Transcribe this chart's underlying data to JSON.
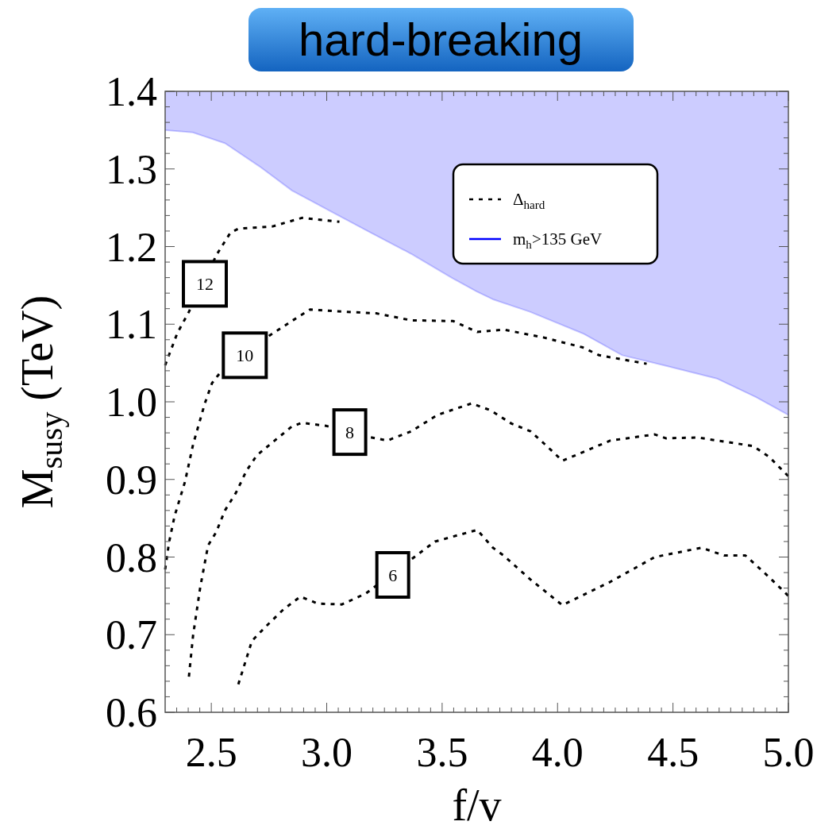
{
  "chart_data": {
    "type": "line",
    "title": "hard-breaking",
    "xlabel": "f/v",
    "ylabel": "M$_{susy}$ (TeV)",
    "xlim": [
      2.3,
      5.0
    ],
    "ylim": [
      0.6,
      1.4
    ],
    "xticks": [
      {
        "value": 2.35,
        "label": null
      },
      {
        "value": 2.4,
        "label": null
      },
      {
        "value": 2.45,
        "label": null
      },
      2.5,
      {
        "value": 2.55,
        "label": null
      },
      {
        "value": 2.6,
        "label": null
      },
      {
        "value": 2.65,
        "label": null
      },
      {
        "value": 2.7,
        "label": null
      },
      {
        "value": 2.75,
        "label": null
      },
      {
        "value": 2.8,
        "label": null
      },
      {
        "value": 2.85,
        "label": null
      },
      {
        "value": 2.9,
        "label": null
      },
      {
        "value": 2.95,
        "label": null
      },
      {
        "value": 3,
        "label": "3.0"
      },
      {
        "value": 3.05,
        "label": null
      },
      {
        "value": 3.1,
        "label": null
      },
      {
        "value": 3.15,
        "label": null
      },
      {
        "value": 3.2,
        "label": null
      },
      {
        "value": 3.25,
        "label": null
      },
      {
        "value": 3.3,
        "label": null
      },
      {
        "value": 3.35,
        "label": null
      },
      {
        "value": 3.4,
        "label": null
      },
      {
        "value": 3.45,
        "label": null
      },
      3.5,
      {
        "value": 3.55,
        "label": null
      },
      {
        "value": 3.6,
        "label": null
      },
      {
        "value": 3.65,
        "label": null
      },
      {
        "value": 3.7,
        "label": null
      },
      {
        "value": 3.75,
        "label": null
      },
      {
        "value": 3.8,
        "label": null
      },
      {
        "value": 3.85,
        "label": null
      },
      {
        "value": 3.9,
        "label": null
      },
      {
        "value": 3.95,
        "label": null
      },
      {
        "value": 4,
        "label": "4.0"
      },
      {
        "value": 4.05,
        "label": null
      },
      {
        "value": 4.1,
        "label": null
      },
      {
        "value": 4.15,
        "label": null
      },
      {
        "value": 4.2,
        "label": null
      },
      {
        "value": 4.25,
        "label": null
      },
      {
        "value": 4.3,
        "label": null
      },
      {
        "value": 4.35,
        "label": null
      },
      {
        "value": 4.4,
        "label": null
      },
      {
        "value": 4.45,
        "label": null
      },
      4.5,
      {
        "value": 4.55,
        "label": null
      },
      {
        "value": 4.6,
        "label": null
      },
      {
        "value": 4.65,
        "label": null
      },
      {
        "value": 4.7,
        "label": null
      },
      {
        "value": 4.75,
        "label": null
      },
      {
        "value": 4.8,
        "label": null
      },
      {
        "value": 4.85,
        "label": null
      },
      {
        "value": 4.9,
        "label": null
      },
      {
        "value": 4.95,
        "label": null
      },
      {
        "value": 5,
        "label": "5.0"
      }
    ],
    "yticks": [
      0.6,
      {
        "value": 0.62,
        "label": null
      },
      {
        "value": 0.64,
        "label": null
      },
      {
        "value": 0.66,
        "label": null
      },
      {
        "value": 0.68,
        "label": null
      },
      0.7,
      {
        "value": 0.72,
        "label": null
      },
      {
        "value": 0.74,
        "label": null
      },
      {
        "value": 0.76,
        "label": null
      },
      {
        "value": 0.78,
        "label": null
      },
      0.8,
      {
        "value": 0.82,
        "label": null
      },
      {
        "value": 0.84,
        "label": null
      },
      {
        "value": 0.86,
        "label": null
      },
      {
        "value": 0.88,
        "label": null
      },
      0.9,
      {
        "value": 0.92,
        "label": null
      },
      {
        "value": 0.94,
        "label": null
      },
      {
        "value": 0.96,
        "label": null
      },
      {
        "value": 0.98,
        "label": null
      },
      {
        "value": 1,
        "label": "1.0"
      },
      {
        "value": 1.02,
        "label": null
      },
      {
        "value": 1.04,
        "label": null
      },
      {
        "value": 1.06,
        "label": null
      },
      {
        "value": 1.08,
        "label": null
      },
      1.1,
      {
        "value": 1.12,
        "label": null
      },
      {
        "value": 1.14,
        "label": null
      },
      {
        "value": 1.16,
        "label": null
      },
      {
        "value": 1.18,
        "label": null
      },
      1.2,
      {
        "value": 1.22,
        "label": null
      },
      {
        "value": 1.24,
        "label": null
      },
      {
        "value": 1.26,
        "label": null
      },
      {
        "value": 1.28,
        "label": null
      },
      1.3,
      {
        "value": 1.32,
        "label": null
      },
      {
        "value": 1.34,
        "label": null
      },
      {
        "value": 1.36,
        "label": null
      },
      {
        "value": 1.38,
        "label": null
      },
      1.4
    ],
    "legend": "top right",
    "line_style": "dashed",
    "series": [
      {
        "name": "Δ$_{hard}$",
        "color": "#000000",
        "x": [
          2.3,
          2.352,
          2.403,
          2.524,
          2.583,
          2.617,
          2.766,
          2.893,
          3.055
        ],
        "values": [
          1.047,
          1.088,
          1.116,
          1.19,
          1.218,
          1.223,
          1.226,
          1.237,
          1.232
        ]
      },
      {
        "color": "#000000",
        "x": [
          2.3,
          2.317,
          2.341,
          2.386,
          2.421,
          2.472,
          2.503,
          2.537,
          2.755,
          2.869,
          2.928,
          3.076,
          3.214,
          3.366,
          3.548,
          3.652,
          3.766,
          3.938,
          4.11,
          4.18,
          4.386
        ],
        "values": [
          0.784,
          0.819,
          0.853,
          0.897,
          0.945,
          0.998,
          1.024,
          1.037,
          1.086,
          1.108,
          1.119,
          1.116,
          1.114,
          1.105,
          1.104,
          1.09,
          1.093,
          1.083,
          1.07,
          1.06,
          1.049
        ]
      },
      {
        "color": "#000000",
        "x": [
          2.403,
          2.421,
          2.452,
          2.486,
          2.521,
          2.559,
          2.607,
          2.652,
          2.697,
          2.766,
          2.848,
          2.893,
          2.997,
          3.179,
          3.262,
          3.366,
          3.479,
          3.628,
          3.71,
          3.8,
          3.883,
          3.928,
          4.021,
          4.228,
          4.421,
          4.469,
          4.607,
          4.848,
          4.917,
          5.0
        ],
        "values": [
          0.646,
          0.699,
          0.761,
          0.815,
          0.832,
          0.86,
          0.883,
          0.911,
          0.931,
          0.948,
          0.968,
          0.973,
          0.969,
          0.955,
          0.95,
          0.962,
          0.983,
          0.998,
          0.989,
          0.972,
          0.962,
          0.95,
          0.924,
          0.95,
          0.958,
          0.953,
          0.954,
          0.943,
          0.929,
          0.904
        ]
      },
      {
        "color": "#000000",
        "x": [
          2.617,
          2.676,
          2.731,
          2.814,
          2.886,
          2.962,
          3.066,
          3.169,
          3.469,
          3.652,
          3.72,
          3.766,
          3.883,
          4.021,
          4.228,
          4.421,
          4.624,
          4.721,
          4.814,
          4.917,
          5.0
        ],
        "values": [
          0.636,
          0.692,
          0.709,
          0.733,
          0.749,
          0.74,
          0.739,
          0.753,
          0.82,
          0.835,
          0.812,
          0.802,
          0.771,
          0.738,
          0.768,
          0.8,
          0.812,
          0.802,
          0.802,
          0.774,
          0.75
        ]
      },
      {
        "name": "m$_{h}$>135 GeV",
        "color": "#0000ff",
        "line_style": "solid",
        "x": [
          2.3,
          2.42,
          2.56,
          2.71,
          2.85,
          3.02,
          3.19,
          3.37,
          3.54,
          3.65,
          3.72,
          3.88,
          4.11,
          4.28,
          4.46,
          4.69,
          4.86,
          5.0
        ],
        "values": [
          1.35,
          1.347,
          1.333,
          1.303,
          1.272,
          1.245,
          1.218,
          1.19,
          1.16,
          1.142,
          1.132,
          1.116,
          1.088,
          1.06,
          1.047,
          1.03,
          1.006,
          0.983
        ],
        "lower": [
          1.35,
          1.347,
          1.333,
          1.303,
          1.272,
          1.245,
          1.218,
          1.19,
          1.16,
          1.142,
          1.132,
          1.116,
          1.088,
          1.06,
          1.047,
          1.03,
          1.006,
          0.983
        ],
        "upper": [
          1.4,
          1.4,
          1.4,
          1.4,
          1.4,
          1.4,
          1.4,
          1.4,
          1.4,
          1.4,
          1.4,
          1.4,
          1.4,
          1.4,
          1.4,
          1.4,
          1.4,
          1.4
        ]
      }
    ],
    "annotations": [
      {
        "text": "12",
        "x": 2.472,
        "y": 1.152
      },
      {
        "text": "10",
        "x": 2.645,
        "y": 1.06
      },
      {
        "text": "8",
        "x": 3.1,
        "y": 0.961
      },
      {
        "text": "6",
        "x": 3.286,
        "y": 0.777
      }
    ]
  }
}
